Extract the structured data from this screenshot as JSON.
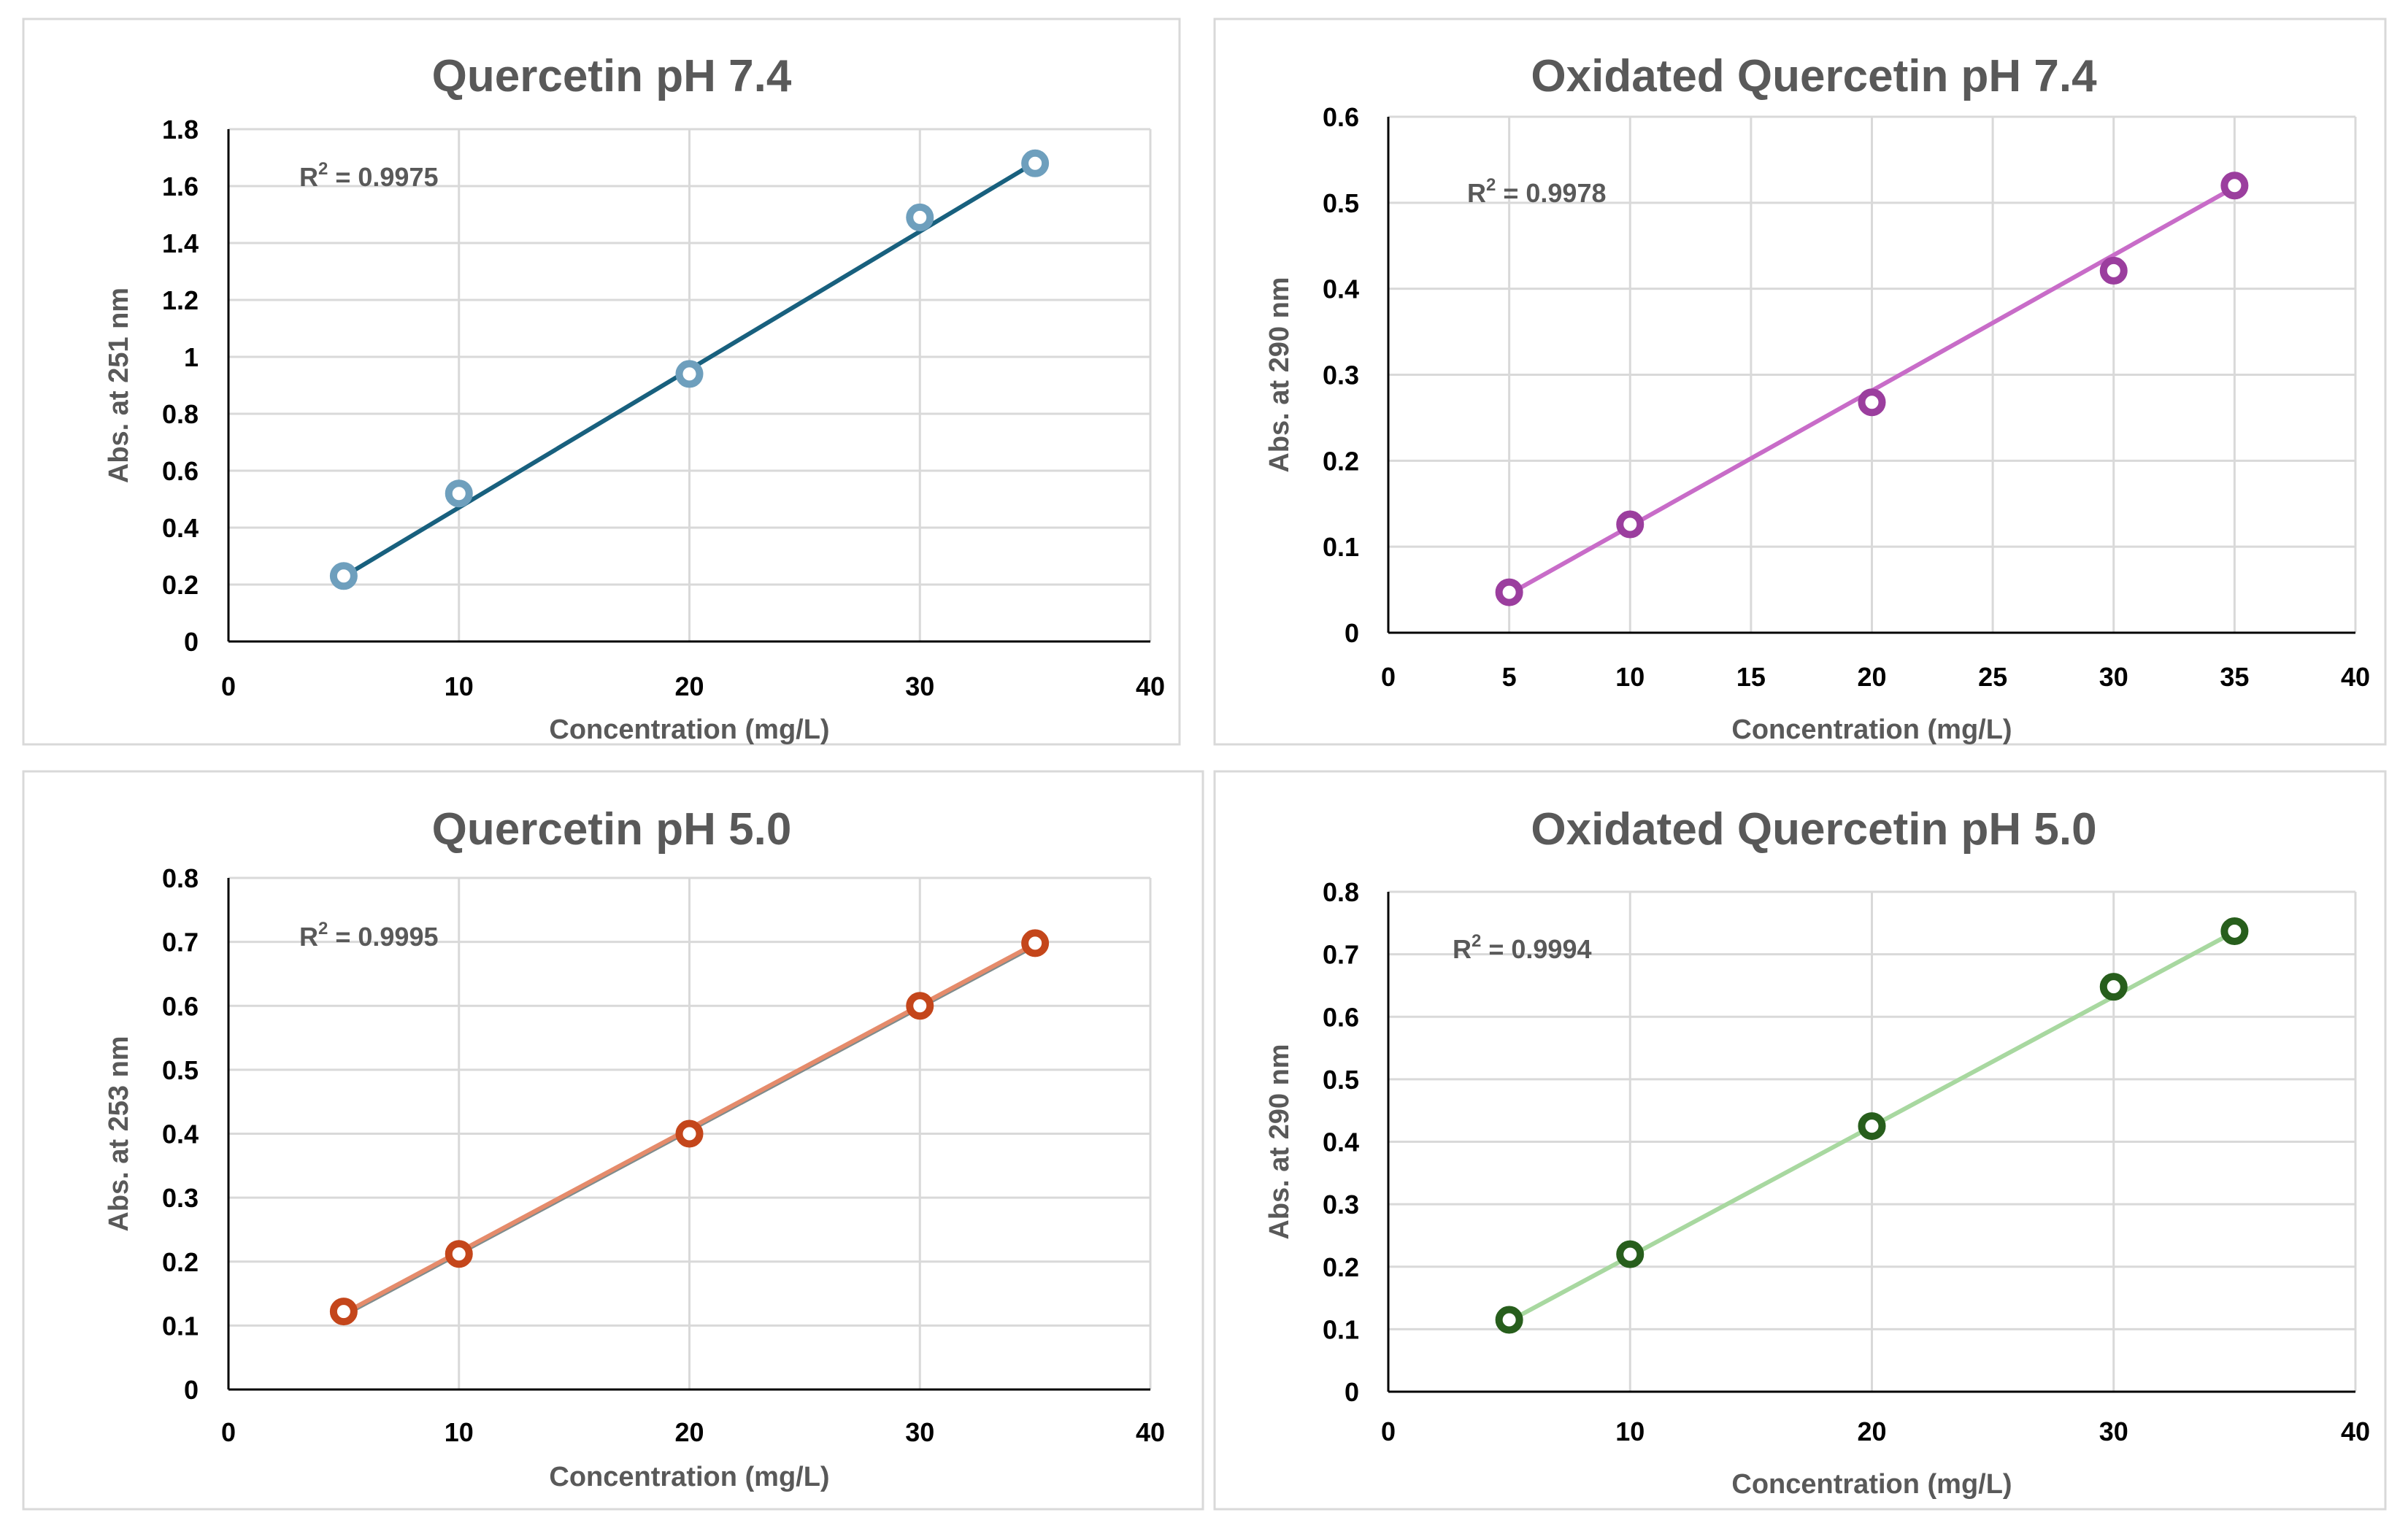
{
  "chart_data": [
    {
      "type": "scatter",
      "title": "Quercetin pH 7.4",
      "xlabel": "Concentration (mg/L)",
      "ylabel": "Abs. at 251 nm",
      "xlim": [
        0,
        40
      ],
      "ylim": [
        0,
        1.8
      ],
      "xticks": [
        0,
        10,
        20,
        30,
        40
      ],
      "yticks": [
        0,
        0.2,
        0.4,
        0.6,
        0.8,
        1,
        1.2,
        1.4,
        1.6,
        1.8
      ],
      "x_grid_values": [
        0,
        10,
        20,
        30,
        40
      ],
      "grid": true,
      "x": [
        5,
        10,
        20,
        30,
        35
      ],
      "y": [
        0.23,
        0.52,
        0.94,
        1.49,
        1.68
      ],
      "trendline": {
        "type": "linear",
        "x": [
          5,
          35
        ],
        "y": [
          0.228,
          1.683
        ]
      },
      "r2": {
        "prefix": "R",
        "exponent": "2",
        "value": " = 0.9975"
      },
      "marker_color": "#6e9fbd",
      "line_color": "#18607e",
      "line_shadow_color": ""
    },
    {
      "type": "scatter",
      "title": "Oxidated Quercetin pH 7.4",
      "xlabel": "Concentration (mg/L)",
      "ylabel": "Abs. at 290 nm",
      "xlim": [
        0,
        40
      ],
      "ylim": [
        0,
        0.6
      ],
      "xticks": [
        0,
        5,
        10,
        15,
        20,
        25,
        30,
        35,
        40
      ],
      "yticks": [
        0,
        0.1,
        0.2,
        0.3,
        0.4,
        0.5,
        0.6
      ],
      "x_grid_values": [
        5,
        10,
        15,
        20,
        25,
        30,
        35,
        40
      ],
      "grid": true,
      "x": [
        5,
        10,
        20,
        30,
        35
      ],
      "y": [
        0.047,
        0.126,
        0.268,
        0.421,
        0.52
      ],
      "trendline": {
        "type": "linear",
        "x": [
          5,
          35
        ],
        "y": [
          0.045,
          0.518
        ]
      },
      "r2": {
        "prefix": "R",
        "exponent": "2",
        "value": " = 0.9978"
      },
      "marker_color": "#9b3e9e",
      "line_color": "#c86cc8",
      "line_shadow_color": ""
    },
    {
      "type": "scatter",
      "title": "Quercetin pH 5.0",
      "xlabel": "Concentration (mg/L)",
      "ylabel": "Abs. at 253 nm",
      "xlim": [
        0,
        40
      ],
      "ylim": [
        0,
        0.8
      ],
      "xticks": [
        0,
        10,
        20,
        30,
        40
      ],
      "yticks": [
        0,
        0.1,
        0.2,
        0.3,
        0.4,
        0.5,
        0.6,
        0.7,
        0.8
      ],
      "x_grid_values": [
        0,
        10,
        20,
        30,
        40
      ],
      "grid": true,
      "x": [
        5,
        10,
        20,
        30,
        35
      ],
      "y": [
        0.122,
        0.212,
        0.4,
        0.6,
        0.698
      ],
      "trendline": {
        "type": "linear",
        "x": [
          5,
          35
        ],
        "y": [
          0.119,
          0.697
        ]
      },
      "r2": {
        "prefix": "R",
        "exponent": "2",
        "value": " = 0.9995"
      },
      "marker_color": "#c4461b",
      "line_color": "#e58b6b",
      "line_shadow_color": "#7f8c8d"
    },
    {
      "type": "scatter",
      "title": "Oxidated Quercetin pH 5.0",
      "xlabel": "Concentration (mg/L)",
      "ylabel": "Abs. at 290 nm",
      "xlim": [
        0,
        40
      ],
      "ylim": [
        0,
        0.8
      ],
      "xticks": [
        0,
        10,
        20,
        30,
        40
      ],
      "yticks": [
        0,
        0.1,
        0.2,
        0.3,
        0.4,
        0.5,
        0.6,
        0.7,
        0.8
      ],
      "x_grid_values": [
        10,
        20,
        30,
        40
      ],
      "grid": true,
      "x": [
        5,
        10,
        20,
        30,
        35
      ],
      "y": [
        0.115,
        0.22,
        0.425,
        0.648,
        0.737
      ],
      "trendline": {
        "type": "linear",
        "x": [
          5,
          35
        ],
        "y": [
          0.113,
          0.736
        ]
      },
      "r2": {
        "prefix": "R",
        "exponent": "2",
        "value": " = 0.9994"
      },
      "marker_color": "#275e1c",
      "line_color": "#a8d8a0",
      "line_shadow_color": ""
    }
  ]
}
